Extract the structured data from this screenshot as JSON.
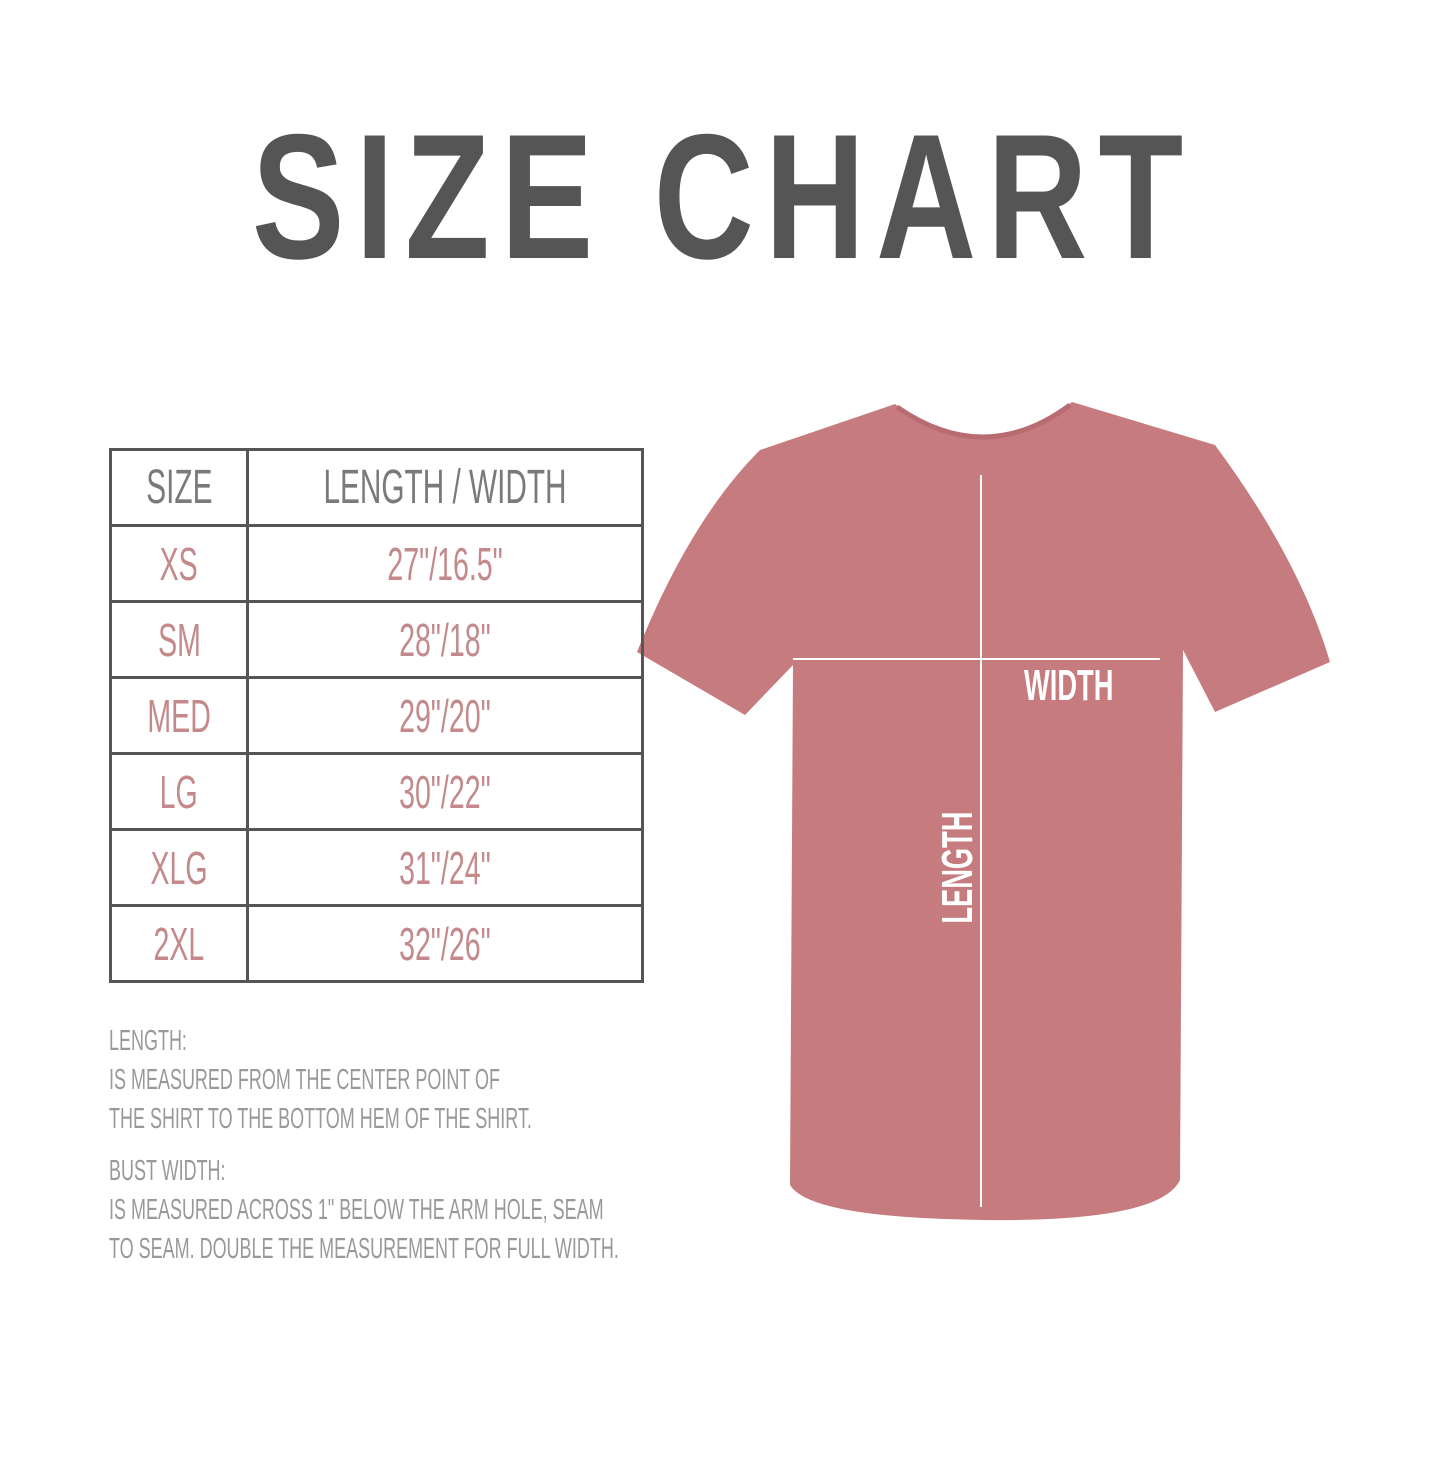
{
  "title": "SIZE CHART",
  "table": {
    "headers": [
      "SIZE",
      "LENGTH / WIDTH"
    ],
    "rows": [
      {
        "size": "XS",
        "measure": "27\"/16.5\""
      },
      {
        "size": "SM",
        "measure": "28\"/18\""
      },
      {
        "size": "MED",
        "measure": "29\"/20\""
      },
      {
        "size": "LG",
        "measure": "30\"/22\""
      },
      {
        "size": "XLG",
        "measure": "31\"/24\""
      },
      {
        "size": "2XL",
        "measure": "32\"/26\""
      }
    ]
  },
  "notes": {
    "length_heading": "LENGTH:",
    "length_line1": "IS MEASURED FROM THE CENTER POINT OF",
    "length_line2": "THE SHIRT TO THE BOTTOM HEM OF THE SHIRT.",
    "width_heading": "BUST WIDTH:",
    "width_line1": "IS MEASURED ACROSS  1\" BELOW THE ARM HOLE, SEAM",
    "width_line2": "TO SEAM. DOUBLE THE MEASUREMENT FOR FULL WIDTH."
  },
  "shirt": {
    "width_label": "WIDTH",
    "length_label": "LENGTH",
    "color": "#c67b7f"
  },
  "colors": {
    "title": "#555555",
    "header_text": "#7a7a7a",
    "value_text": "#c48a8b",
    "notes_text": "#999999"
  }
}
